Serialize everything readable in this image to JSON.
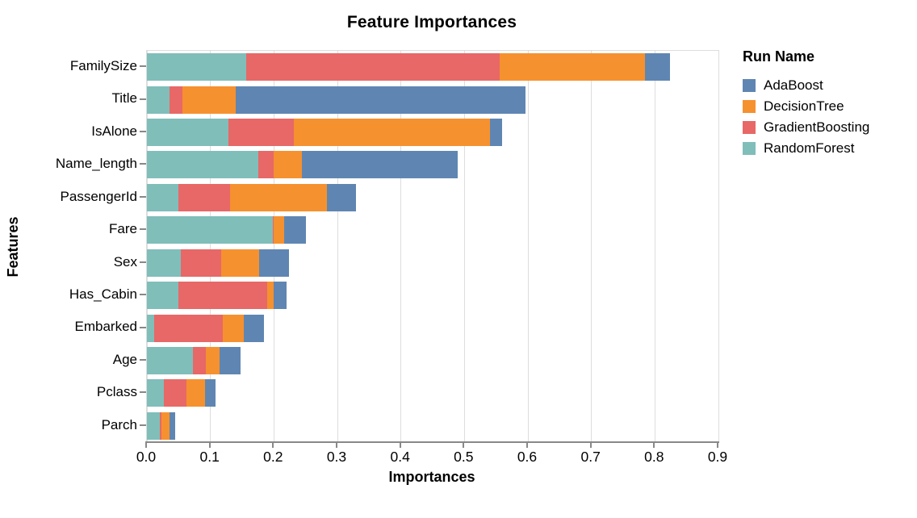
{
  "chart_data": {
    "type": "bar",
    "orientation": "horizontal",
    "stacked": true,
    "title": "Feature Importances",
    "xlabel": "Importances",
    "ylabel": "Features",
    "legend_title": "Run Name",
    "legend_position": "right",
    "grid": true,
    "xlim": [
      0,
      0.92
    ],
    "xticks": [
      0.0,
      0.1,
      0.2,
      0.3,
      0.4,
      0.5,
      0.6,
      0.7,
      0.8,
      0.9
    ],
    "xtick_labels": [
      "0.0",
      "0.1",
      "0.2",
      "0.3",
      "0.4",
      "0.5",
      "0.6",
      "0.7",
      "0.8",
      "0.9"
    ],
    "categories": [
      "FamilySize",
      "Title",
      "IsAlone",
      "Name_length",
      "PassengerId",
      "Fare",
      "Sex",
      "Has_Cabin",
      "Embarked",
      "Age",
      "Pclass",
      "Parch"
    ],
    "series": [
      {
        "name": "RandomForest",
        "color": "#80beba",
        "values": [
          0.156,
          0.036,
          0.128,
          0.175,
          0.049,
          0.198,
          0.053,
          0.049,
          0.011,
          0.072,
          0.027,
          0.02
        ]
      },
      {
        "name": "GradientBoosting",
        "color": "#e76867",
        "values": [
          0.399,
          0.02,
          0.103,
          0.025,
          0.082,
          0.002,
          0.064,
          0.141,
          0.109,
          0.021,
          0.035,
          0.003
        ]
      },
      {
        "name": "DecisionTree",
        "color": "#f6912f",
        "values": [
          0.229,
          0.084,
          0.309,
          0.044,
          0.153,
          0.016,
          0.06,
          0.01,
          0.032,
          0.021,
          0.029,
          0.013
        ]
      },
      {
        "name": "AdaBoost",
        "color": "#5f86b2",
        "values": [
          0.04,
          0.456,
          0.019,
          0.245,
          0.045,
          0.035,
          0.047,
          0.02,
          0.032,
          0.034,
          0.017,
          0.009
        ]
      }
    ],
    "legend_entries": [
      {
        "label": "AdaBoost",
        "color": "#5f86b2"
      },
      {
        "label": "DecisionTree",
        "color": "#f6912f"
      },
      {
        "label": "GradientBoosting",
        "color": "#e76867"
      },
      {
        "label": "RandomForest",
        "color": "#80beba"
      }
    ],
    "colors": {
      "grid": "#dddddd",
      "plot_border": "#dddddd",
      "axis": "#888888",
      "text": "#000000",
      "background": "#ffffff"
    }
  }
}
